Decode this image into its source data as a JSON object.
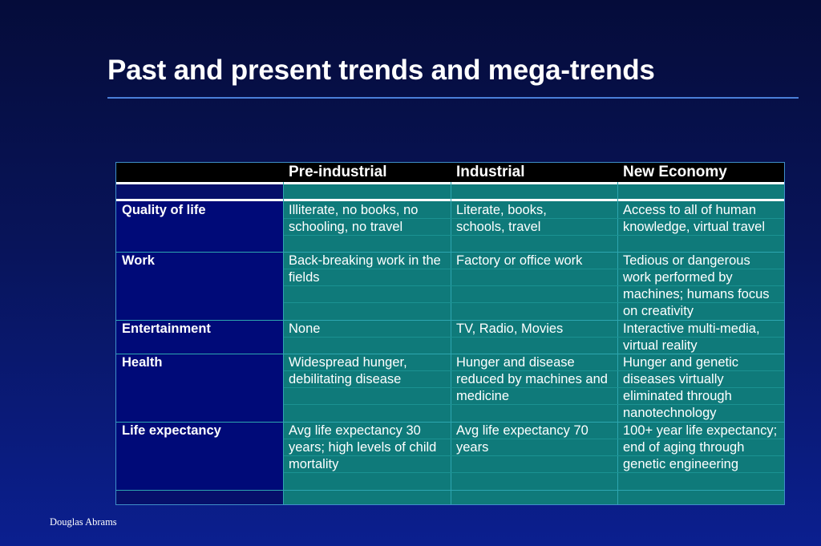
{
  "slide": {
    "title": "Past and present trends and mega-trends",
    "footer": "Douglas Abrams"
  },
  "table": {
    "columns": [
      "Pre-industrial",
      "Industrial",
      "New Economy"
    ],
    "rows": [
      {
        "label": "Quality of life",
        "pre": "Illiterate, no books, no schooling, no travel",
        "ind": "Literate, books, schools, travel",
        "new": "Access to all of human knowledge, virtual travel"
      },
      {
        "label": "Work",
        "pre": "Back-breaking work in the fields",
        "ind": "Factory or office work",
        "new": "Tedious or dangerous work performed by machines; humans focus on creativity"
      },
      {
        "label": "Entertainment",
        "pre": "None",
        "ind": "TV, Radio, Movies",
        "new": "Interactive multi-media, virtual reality"
      },
      {
        "label": "Health",
        "pre": "Widespread hunger, debilitating disease",
        "ind": "Hunger and disease reduced by  machines and medicine",
        "new": "Hunger and genetic diseases virtually eliminated through nanotechnology"
      },
      {
        "label": "Life expectancy",
        "pre": "Avg life expectancy 30 years; high levels of child mortality",
        "ind": "Avg life expectancy 70 years",
        "new": "100+ year life expectancy; end of aging through genetic engineering"
      }
    ]
  },
  "colors": {
    "background": "#08145a",
    "label_column": "#000a78",
    "data_cells": "#0f7a7a",
    "header": "#000000",
    "rule": "#4a7fd8"
  }
}
